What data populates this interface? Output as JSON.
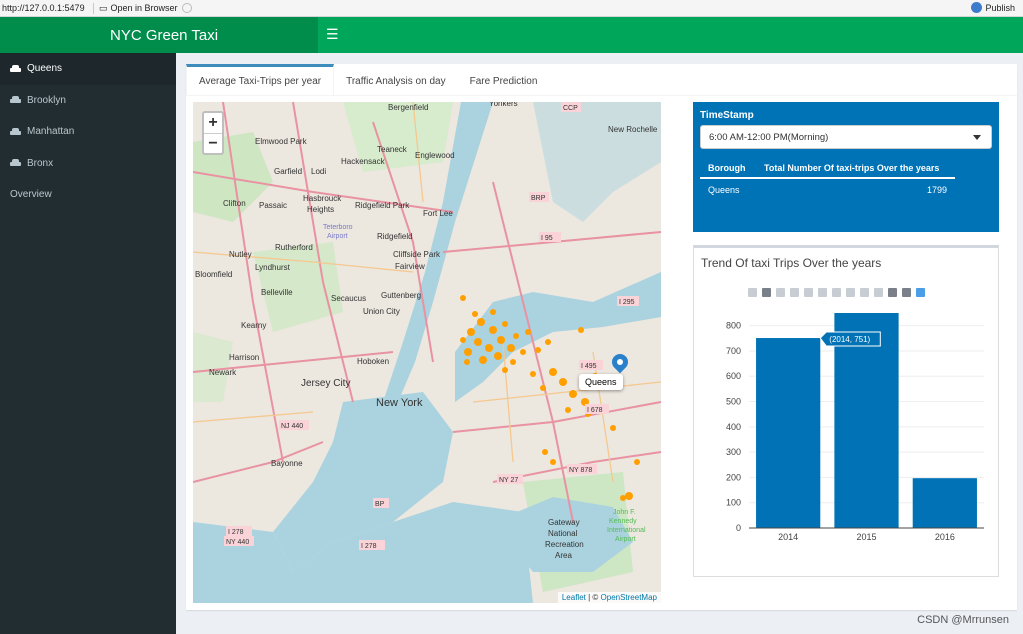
{
  "browser": {
    "url": "http://127.0.0.1:5479",
    "open_label": "Open in Browser",
    "publish_label": "Publish"
  },
  "header": {
    "title": "NYC Green Taxi",
    "toggle_icon": "☰"
  },
  "sidebar": {
    "items": [
      {
        "label": "Queens",
        "icon": "car-icon"
      },
      {
        "label": "Brooklyn",
        "icon": "car-icon"
      },
      {
        "label": "Manhattan",
        "icon": "car-icon"
      },
      {
        "label": "Bronx",
        "icon": "car-icon"
      },
      {
        "label": "Overview"
      }
    ]
  },
  "tabs": [
    "Average Taxi-Trips per year",
    "Traffic Analysis on day",
    "Fare Prediction"
  ],
  "map": {
    "zoom_in": "+",
    "zoom_out": "−",
    "popup": "Queens",
    "attribution_leaflet": "Leaflet",
    "attribution_sep": " | © ",
    "attribution_osm": "OpenStreetMap",
    "labels": [
      "Yonkers",
      "Bergenfield",
      "New Rochelle",
      "Teaneck",
      "Englewood",
      "Hackensack",
      "Elmwood Park",
      "Garfield",
      "Lodi",
      "Clifton",
      "Passaic",
      "Hasbrouck Heights",
      "Ridgefield Park",
      "Fort Lee",
      "Ridgefield",
      "Cliffside Park",
      "Fairview",
      "Nutley",
      "Lyndhurst",
      "Rutherford",
      "Belleville",
      "Bloomfield",
      "Kearny",
      "Secaucus",
      "Guttenberg",
      "Union City",
      "Harrison",
      "Hoboken",
      "Newark",
      "Jersey City",
      "New York",
      "Bayonne",
      "Gateway National Recreation Area",
      "John F. Kennedy International Airport",
      "Teterboro Airport"
    ],
    "routes": [
      "CCP",
      "BRP",
      "I 95",
      "I 295",
      "I 495",
      "I 678",
      "NY 878",
      "NY 27",
      "BP",
      "NJ 440",
      "I 278",
      "NY 440",
      "I 278"
    ]
  },
  "timestamp": {
    "title": "TimeStamp",
    "selected": "6:00 AM-12:00 PM(Morning)",
    "table": {
      "headers": [
        "Borough",
        "Total Number Of taxi-trips Over the years"
      ],
      "rows": [
        [
          "Queens",
          "1799"
        ]
      ]
    }
  },
  "chart": {
    "title": "Trend Of taxi Trips Over the years",
    "tooltip": "(2014, 751)",
    "bar_color": "#0072b5"
  },
  "chart_data": {
    "type": "bar",
    "title": "Trend Of taxi Trips Over the years",
    "categories": [
      "2014",
      "2015",
      "2016"
    ],
    "values": [
      751,
      850,
      197
    ],
    "ylim": [
      0,
      850
    ],
    "yticks": [
      0,
      100,
      200,
      300,
      400,
      500,
      600,
      700,
      800
    ],
    "grid": true
  },
  "watermark": "CSDN @Mrrunsen"
}
